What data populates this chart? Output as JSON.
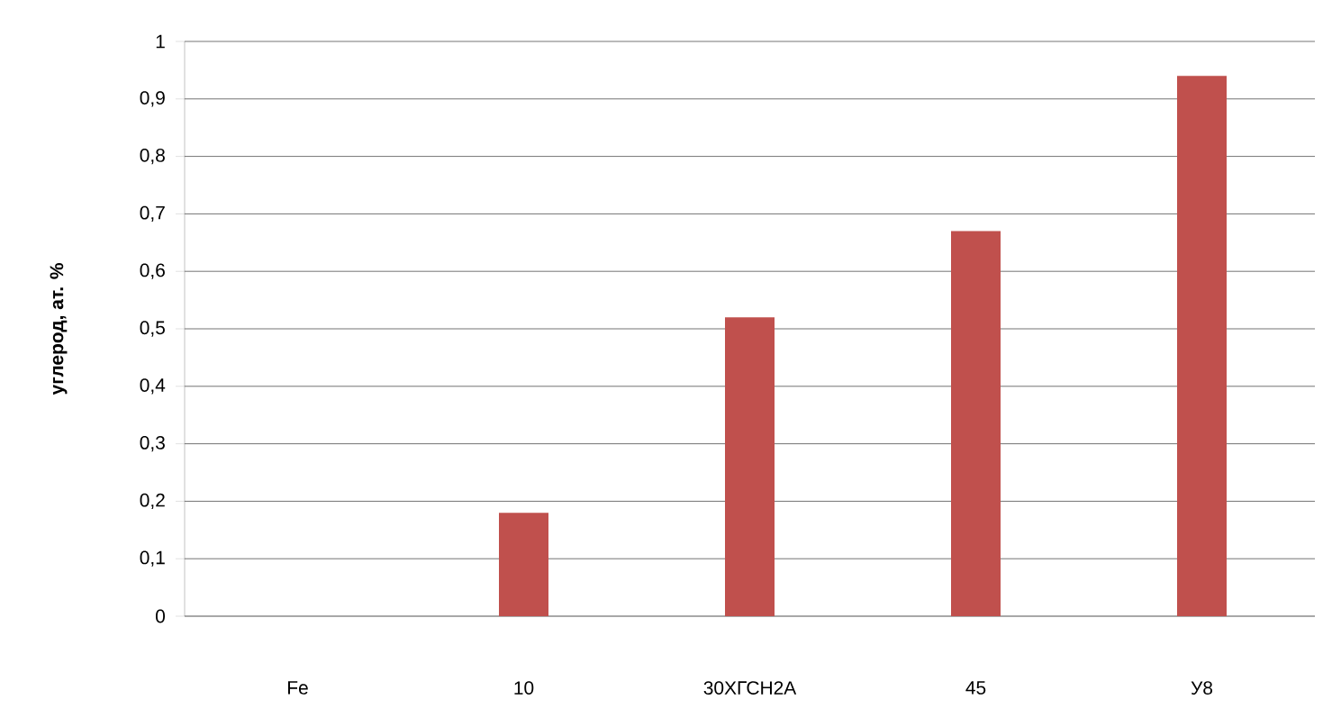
{
  "chart_data": {
    "type": "bar",
    "ylabel": "углерод, ат. %",
    "categories": [
      "Fe",
      "10",
      "30ХГСН2А",
      "45",
      "У8"
    ],
    "values": [
      0,
      0.18,
      0.52,
      0.67,
      0.94
    ],
    "color": "#c0504d",
    "ylim": [
      0,
      1
    ],
    "yticks": [
      0,
      {
        "value": 0.1,
        "label": "0,1"
      },
      {
        "value": 0.2,
        "label": "0,2"
      },
      {
        "value": 0.3,
        "label": "0,3"
      },
      {
        "value": 0.4,
        "label": "0,4"
      },
      {
        "value": 0.5,
        "label": "0,5"
      },
      {
        "value": 0.6,
        "label": "0,6"
      },
      {
        "value": 0.7,
        "label": "0,7"
      },
      {
        "value": 0.8,
        "label": "0,8"
      },
      {
        "value": 0.9,
        "label": "0,9"
      },
      1
    ],
    "grid": "y"
  }
}
